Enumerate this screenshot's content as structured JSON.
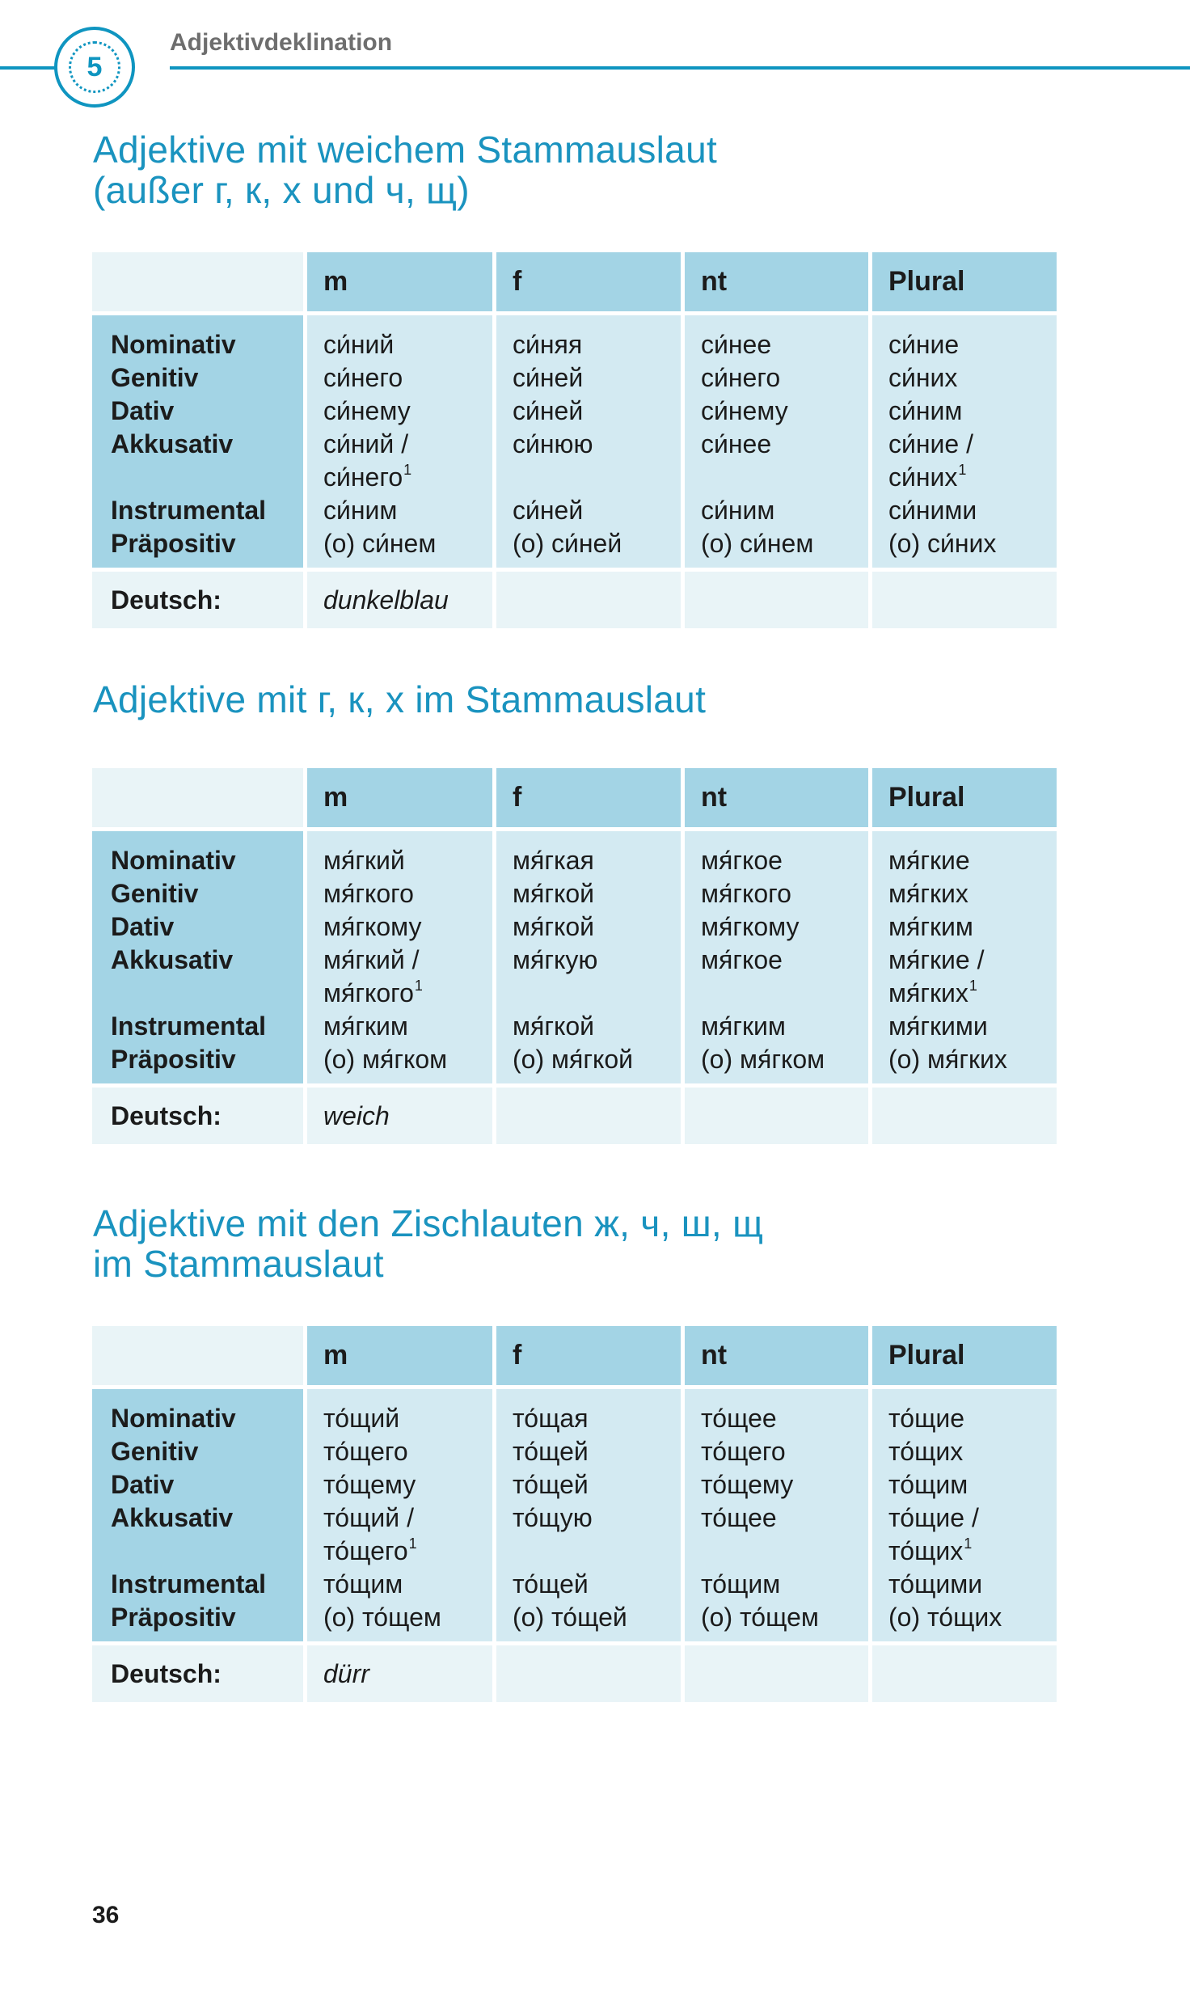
{
  "header": {
    "chapter_number": "5",
    "chapter_title": "Adjektivdeklination"
  },
  "colors": {
    "accent": "#1a93bf",
    "header_cell": "#a3d4e5",
    "body_cell": "#d3eaf2",
    "light_cell": "#e9f4f7"
  },
  "columns": [
    "m",
    "f",
    "nt",
    "Plural"
  ],
  "case_labels": [
    "Nominativ",
    "Genitiv",
    "Dativ",
    "Akkusativ",
    "",
    "Instrumental",
    "Präpositiv"
  ],
  "deutsch_label": "Deutsch:",
  "tables": [
    {
      "title": [
        "Adjektive mit weichem Stammauslaut",
        "(außer г, к, х und ч, щ)"
      ],
      "translation": "dunkelblau",
      "cells": [
        [
          [
            "си́ний",
            ""
          ],
          [
            "си́него",
            ""
          ],
          [
            "си́нему",
            ""
          ],
          [
            "си́ний /",
            ""
          ],
          [
            "си́него",
            "1"
          ],
          [
            "си́ним",
            ""
          ],
          [
            "(о) си́нем",
            ""
          ]
        ],
        [
          [
            "си́няя",
            ""
          ],
          [
            "си́ней",
            ""
          ],
          [
            "си́ней",
            ""
          ],
          [
            "си́нюю",
            ""
          ],
          [
            "",
            ""
          ],
          [
            "си́ней",
            ""
          ],
          [
            "(о) си́ней",
            ""
          ]
        ],
        [
          [
            "си́нее",
            ""
          ],
          [
            "си́него",
            ""
          ],
          [
            "си́нему",
            ""
          ],
          [
            "си́нее",
            ""
          ],
          [
            "",
            ""
          ],
          [
            "си́ним",
            ""
          ],
          [
            "(о) си́нем",
            ""
          ]
        ],
        [
          [
            "си́ние",
            ""
          ],
          [
            "си́них",
            ""
          ],
          [
            "си́ним",
            ""
          ],
          [
            "си́ние /",
            ""
          ],
          [
            "си́них",
            "1"
          ],
          [
            "си́ними",
            ""
          ],
          [
            "(о) си́них",
            ""
          ]
        ]
      ]
    },
    {
      "title": [
        "Adjektive mit г, к, х im Stammauslaut"
      ],
      "translation": "weich",
      "cells": [
        [
          [
            "мя́гкий",
            ""
          ],
          [
            "мя́гкого",
            ""
          ],
          [
            "мя́гкому",
            ""
          ],
          [
            "мя́гкий /",
            ""
          ],
          [
            "мя́гкого",
            "1"
          ],
          [
            "мя́гким",
            ""
          ],
          [
            "(о) мя́гком",
            ""
          ]
        ],
        [
          [
            "мя́гкая",
            ""
          ],
          [
            "мя́гкой",
            ""
          ],
          [
            "мя́гкой",
            ""
          ],
          [
            "мя́гкую",
            ""
          ],
          [
            "",
            ""
          ],
          [
            "мя́гкой",
            ""
          ],
          [
            "(о) мя́гкой",
            ""
          ]
        ],
        [
          [
            "мя́гкое",
            ""
          ],
          [
            "мя́гкого",
            ""
          ],
          [
            "мя́гкому",
            ""
          ],
          [
            "мя́гкое",
            ""
          ],
          [
            "",
            ""
          ],
          [
            "мя́гким",
            ""
          ],
          [
            "(о) мя́гком",
            ""
          ]
        ],
        [
          [
            "мя́гкие",
            ""
          ],
          [
            "мя́гких",
            ""
          ],
          [
            "мя́гким",
            ""
          ],
          [
            "мя́гкие /",
            ""
          ],
          [
            "мя́гких",
            "1"
          ],
          [
            "мя́гкими",
            ""
          ],
          [
            "(о) мя́гких",
            ""
          ]
        ]
      ]
    },
    {
      "title": [
        "Adjektive mit den Zischlauten ж, ч, ш, щ",
        "im Stammauslaut"
      ],
      "translation": "dürr",
      "cells": [
        [
          [
            "то́щий",
            ""
          ],
          [
            "то́щего",
            ""
          ],
          [
            "то́щему",
            ""
          ],
          [
            "то́щий /",
            ""
          ],
          [
            "то́щего",
            "1"
          ],
          [
            "то́щим",
            ""
          ],
          [
            "(о) то́щем",
            ""
          ]
        ],
        [
          [
            "то́щая",
            ""
          ],
          [
            "то́щей",
            ""
          ],
          [
            "то́щей",
            ""
          ],
          [
            "то́щую",
            ""
          ],
          [
            "",
            ""
          ],
          [
            "то́щей",
            ""
          ],
          [
            "(о) то́щей",
            ""
          ]
        ],
        [
          [
            "то́щее",
            ""
          ],
          [
            "то́щего",
            ""
          ],
          [
            "то́щему",
            ""
          ],
          [
            "то́щее",
            ""
          ],
          [
            "",
            ""
          ],
          [
            "то́щим",
            ""
          ],
          [
            "(о) то́щем",
            ""
          ]
        ],
        [
          [
            "то́щие",
            ""
          ],
          [
            "то́щих",
            ""
          ],
          [
            "то́щим",
            ""
          ],
          [
            "то́щие /",
            ""
          ],
          [
            "то́щих",
            "1"
          ],
          [
            "то́щими",
            ""
          ],
          [
            "(о) то́щих",
            ""
          ]
        ]
      ]
    }
  ],
  "page_number": "36"
}
